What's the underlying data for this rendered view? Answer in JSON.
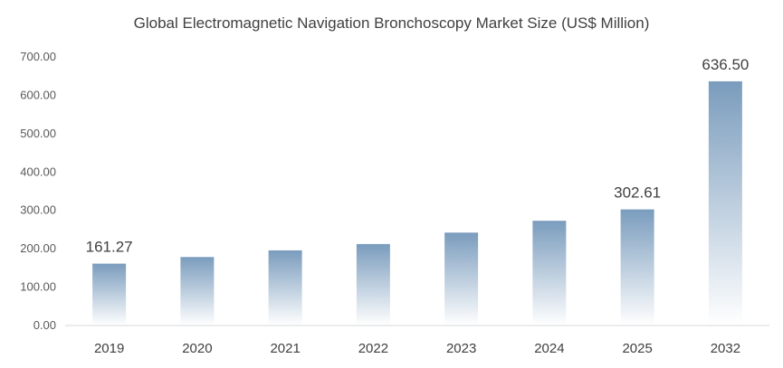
{
  "chart_data": {
    "type": "bar",
    "title": "Global Electromagnetic Navigation  Bronchoscopy Market Size (US$ Million)",
    "categories": [
      "2019",
      "2020",
      "2021",
      "2022",
      "2023",
      "2024",
      "2025",
      "2032"
    ],
    "values": [
      161.27,
      178.5,
      195.8,
      212.3,
      242.1,
      273.0,
      302.61,
      636.5
    ],
    "data_labels": [
      {
        "category": "2019",
        "text": "161.27"
      },
      {
        "category": "2025",
        "text": "302.61"
      },
      {
        "category": "2032",
        "text": "636.50"
      }
    ],
    "ylim": [
      0,
      700
    ],
    "yticks": [
      "0.00",
      "100.00",
      "200.00",
      "300.00",
      "400.00",
      "500.00",
      "600.00",
      "700.00"
    ],
    "xlabel": "",
    "ylabel": "",
    "grid": false,
    "legend": "none",
    "colors": {
      "bar_top": "#7a9cbd",
      "bar_bottom": "#ffffff",
      "axis": "#d9d9d9"
    }
  }
}
